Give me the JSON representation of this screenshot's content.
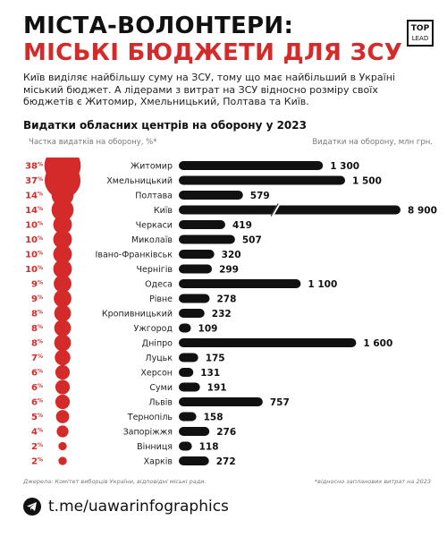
{
  "header": {
    "title_line1": "МІСТА-ВОЛОНТЕРИ:",
    "title_line2": "МІСЬКІ БЮДЖЕТИ ДЛЯ ЗСУ",
    "logo_top": "TOP",
    "logo_bottom": "LEAD",
    "intro": "Київ виділяє найбільшу суму на ЗСУ, тому що має найбільший в Україні міський бюджет. А лідерами з витрат на ЗСУ відносно розміру своїх бюджетів є Житомир, Хмельницький, Полтава та Київ."
  },
  "chart_data": {
    "type": "bar",
    "title": "Видатки обласних центрів на оборону у 2023",
    "left_column_label": "Частка видатків на оборону, %*",
    "right_column_label": "Видатки на оборону, млн грн.",
    "share_unit": "%",
    "categories": [
      "Житомир",
      "Хмельницький",
      "Полтава",
      "Київ",
      "Черкаси",
      "Миколаїв",
      "Івано-Франківськ",
      "Чернігів",
      "Одеса",
      "Рівне",
      "Кропивницький",
      "Ужгород",
      "Дніпро",
      "Луцьк",
      "Херсон",
      "Суми",
      "Львів",
      "Тернопіль",
      "Запоріжжя",
      "Вінниця",
      "Харків"
    ],
    "share_percent": [
      38,
      37,
      14,
      14,
      10,
      10,
      10,
      10,
      9,
      9,
      8,
      8,
      8,
      7,
      6,
      6,
      6,
      5,
      4,
      2,
      2
    ],
    "spending_mln": [
      1300,
      1500,
      579,
      8900,
      419,
      507,
      320,
      299,
      1100,
      278,
      232,
      109,
      1600,
      175,
      131,
      191,
      757,
      158,
      276,
      118,
      272
    ],
    "spending_labels": [
      "1 300",
      "1 500",
      "579",
      "8 900",
      "419",
      "507",
      "320",
      "299",
      "1 100",
      "278",
      "232",
      "109",
      "1 600",
      "175",
      "131",
      "191",
      "757",
      "158",
      "276",
      "118",
      "272"
    ],
    "broken_bar": "Київ",
    "colors": {
      "share": "#d42a2a",
      "bar": "#111111"
    }
  },
  "footer": {
    "source": "Джерела: Комітет виборців України, відповідні міські ради.",
    "note": "*відносно запланових витрат на 2023",
    "telegram": "t.me/uawarinfographics"
  }
}
